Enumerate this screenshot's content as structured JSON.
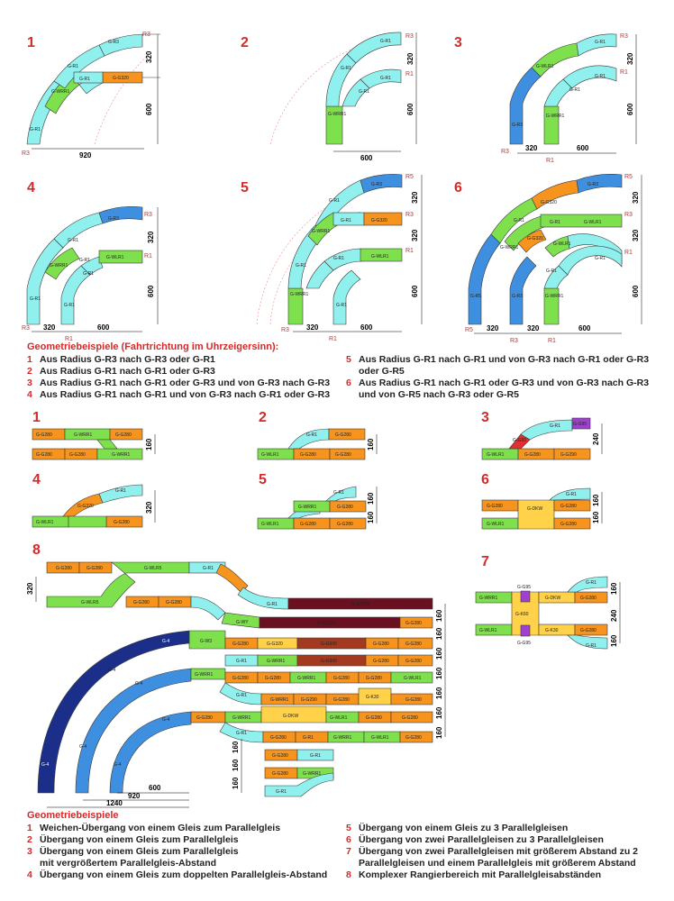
{
  "section_a": {
    "numbers": [
      "1",
      "2",
      "3",
      "4",
      "5",
      "6"
    ],
    "heading": "Geometriebeispiele (Fahrtrichtung im Uhrzeigersinn):",
    "captions_left": [
      {
        "n": "1",
        "t": "Aus Radius G-R3 nach G-R3 oder G-R1"
      },
      {
        "n": "2",
        "t": "Aus Radius G-R1 nach G-R1 oder G-R3"
      },
      {
        "n": "3",
        "t": "Aus Radius G-R1 nach G-R1 oder G-R3 und von G-R3 nach G-R3"
      },
      {
        "n": "4",
        "t": "Aus Radius G-R1 nach G-R1 und von G-R3 nach G-R1 oder G-R3"
      }
    ],
    "captions_right": [
      {
        "n": "5",
        "t": "Aus Radius G-R1 nach G-R1 und von G-R3 nach G-R1 oder G-R3",
        "t2": "oder G-R5"
      },
      {
        "n": "6",
        "t": "Aus Radius G-R1 nach G-R1 oder G-R3 und von G-R3 nach G-R3",
        "t2": "und von G-R5 nach G-R3 oder G-R5"
      }
    ]
  },
  "labels": {
    "r3": "R3",
    "r1": "R1",
    "r5": "R5",
    "d920": "920",
    "d600": "600",
    "d320": "320",
    "d160": "160",
    "d240": "240",
    "d1240": "1240",
    "gr3": "G-R3",
    "gr1": "G-R1",
    "gwrr1": "G-WRR1",
    "gwlr1": "G-WLR1",
    "gg320": "G-G320",
    "gg280": "G-G280",
    "gg290": "G-G290",
    "gg95": "G-G95",
    "gg60": "G-G60",
    "gg1200": "G-G1200",
    "gg600": "G-G600",
    "gdkw": "G-DKW",
    "gk30": "G-K30",
    "gk60": "G-K60",
    "gwy": "G-WY",
    "gw3": "G-W3",
    "gwlr5": "G-WLR5",
    "gwrr5": "G-WRR5",
    "gr5": "G-R5",
    "g4": "G-4",
    "g5": "G-5",
    "g6": "G-6",
    "g3": "G-3"
  },
  "section_b": {
    "numbers": [
      "1",
      "2",
      "3",
      "4",
      "5",
      "6",
      "7",
      "8"
    ],
    "heading": "Geometriebeispiele",
    "captions_left": [
      {
        "n": "1",
        "t": "Weichen-Übergang von einem Gleis zum Parallelgleis"
      },
      {
        "n": "2",
        "t": "Übergang von einem Gleis zum Parallelgleis"
      },
      {
        "n": "3",
        "t": "Übergang von einem Gleis zum Parallelgleis",
        "t2": "mit vergrößertem Parallelgleis-Abstand"
      },
      {
        "n": "4",
        "t": "Übergang von einem Gleis zum doppelten Parallelgleis-Abstand"
      }
    ],
    "captions_right": [
      {
        "n": "5",
        "t": "Übergang von einem Gleis zu 3 Parallelgleisen"
      },
      {
        "n": "6",
        "t": "Übergang von zwei Parallelgleisen zu 3 Parallelgleisen"
      },
      {
        "n": "7",
        "t": "Übergang von zwei Parallelgleisen mit größerem Abstand zu 2",
        "t2": "Parallelgleisen und einem Parallelgleis mit größerem Abstand"
      },
      {
        "n": "8",
        "t": "Komplexer Rangierbereich mit Parallelgleisabständen"
      }
    ]
  },
  "colors": {
    "cyan": "#8ff0ee",
    "green": "#7fe04e",
    "orange": "#f7941d",
    "blue": "#3f8fe0",
    "darkblue": "#1b2f8a",
    "maroon": "#6b1020",
    "brown": "#a33a1f",
    "yellow": "#ffd24a",
    "purple": "#a040d0",
    "red": "#e03030"
  }
}
